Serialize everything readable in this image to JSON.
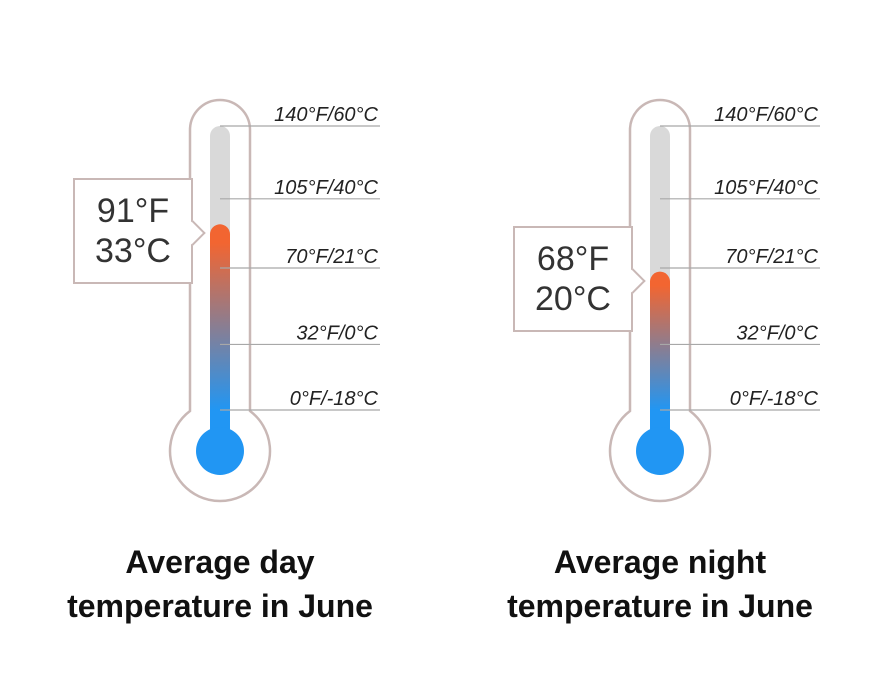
{
  "colors": {
    "outline": "#c9b8b6",
    "tube": "#d9d9d9",
    "cold": "#2196f3",
    "hot": "#f26531",
    "gridline": "#a8a8a8",
    "text": "#222222"
  },
  "scale": {
    "min_celsius": -18,
    "max_celsius": 60,
    "ticks": [
      {
        "celsius": 60,
        "label": "140°F/60°C"
      },
      {
        "celsius": 40,
        "label": "105°F/40°C"
      },
      {
        "celsius": 21,
        "label": "70°F/21°C"
      },
      {
        "celsius": 0,
        "label": "32°F/0°C"
      },
      {
        "celsius": -18,
        "label": "0°F/-18°C"
      }
    ]
  },
  "thermometers": [
    {
      "id": "day",
      "fahrenheit_label": "91°F",
      "celsius_label": "33°C",
      "celsius_value": 33,
      "caption_line1": "Average day",
      "caption_line2": "temperature in June"
    },
    {
      "id": "night",
      "fahrenheit_label": "68°F",
      "celsius_label": "20°C",
      "celsius_value": 20,
      "caption_line1": "Average night",
      "caption_line2": "temperature in June"
    }
  ]
}
